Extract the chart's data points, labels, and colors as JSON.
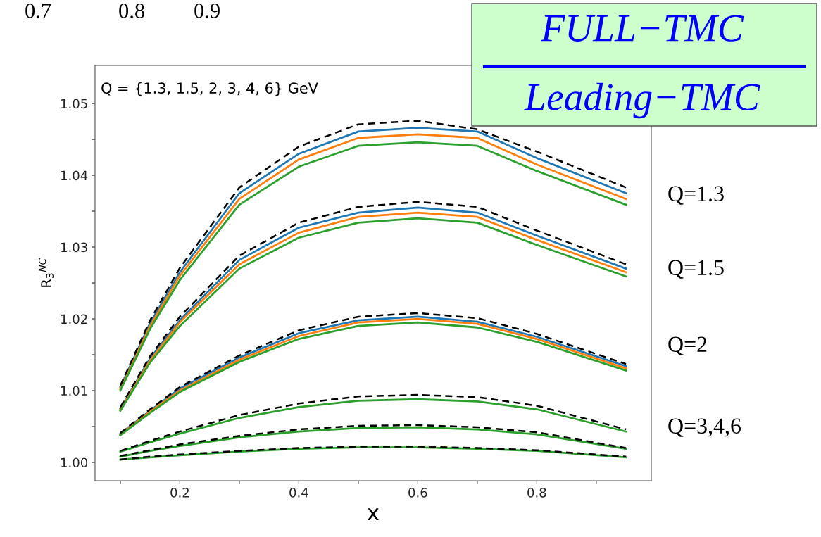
{
  "chart_data": {
    "type": "line",
    "xlabel": "x",
    "ylabel": "R$_{3}$$^{NC}$",
    "x": [
      0.1,
      0.15,
      0.2,
      0.3,
      0.4,
      0.5,
      0.6,
      0.7,
      0.8,
      0.95
    ],
    "series": [
      {
        "color": "#1f77b4",
        "line_style": "solid",
        "values": [
          1.0105,
          1.0194,
          1.0265,
          1.0375,
          1.043,
          1.0461,
          1.0466,
          1.0461,
          1.0424,
          1.0375
        ]
      },
      {
        "color": "#ff7f0e",
        "line_style": "solid",
        "values": [
          1.0102,
          1.019,
          1.026,
          1.0367,
          1.0422,
          1.0452,
          1.0457,
          1.0452,
          1.0415,
          1.0367
        ]
      },
      {
        "color": "#2ca02c",
        "line_style": "solid",
        "values": [
          1.01,
          1.0186,
          1.0254,
          1.0359,
          1.0412,
          1.0441,
          1.0446,
          1.0441,
          1.0406,
          1.0359
        ]
      },
      {
        "color": "#000000",
        "line_style": "dashed",
        "values": [
          1.0107,
          1.0198,
          1.0271,
          1.0383,
          1.044,
          1.0471,
          1.0476,
          1.0464,
          1.0433,
          1.0383
        ]
      },
      {
        "color": "#1f77b4",
        "line_style": "solid",
        "values": [
          1.0075,
          1.0145,
          1.0198,
          1.0282,
          1.0327,
          1.0348,
          1.0355,
          1.0348,
          1.0316,
          1.027
        ]
      },
      {
        "color": "#ff7f0e",
        "line_style": "solid",
        "values": [
          1.0074,
          1.0142,
          1.0195,
          1.0276,
          1.032,
          1.0342,
          1.0348,
          1.0342,
          1.031,
          1.0265
        ]
      },
      {
        "color": "#2ca02c",
        "line_style": "solid",
        "values": [
          1.0072,
          1.0139,
          1.019,
          1.027,
          1.0313,
          1.0334,
          1.034,
          1.0334,
          1.0303,
          1.0259
        ]
      },
      {
        "color": "#000000",
        "line_style": "dashed",
        "values": [
          1.0077,
          1.0148,
          1.0203,
          1.0288,
          1.0334,
          1.0356,
          1.0363,
          1.0356,
          1.0323,
          1.0276
        ]
      },
      {
        "color": "#1f77b4",
        "line_style": "solid",
        "values": [
          1.004,
          1.0072,
          1.0103,
          1.0146,
          1.018,
          1.0198,
          1.0203,
          1.0196,
          1.0175,
          1.0134
        ]
      },
      {
        "color": "#ff7f0e",
        "line_style": "solid",
        "values": [
          1.0039,
          1.0071,
          1.01,
          1.0143,
          1.0176,
          1.0195,
          1.02,
          1.0193,
          1.0172,
          1.0131
        ]
      },
      {
        "color": "#2ca02c",
        "line_style": "solid",
        "values": [
          1.0038,
          1.0069,
          1.0098,
          1.014,
          1.0172,
          1.019,
          1.0195,
          1.0188,
          1.0168,
          1.0128
        ]
      },
      {
        "color": "#000000",
        "line_style": "dashed",
        "values": [
          1.0041,
          1.0074,
          1.0105,
          1.0149,
          1.0184,
          1.0203,
          1.0208,
          1.0201,
          1.0179,
          1.0137
        ]
      },
      {
        "color": "#2ca02c",
        "line_style": "solid",
        "values": [
          1.0015,
          1.0028,
          1.004,
          1.0062,
          1.0077,
          1.0086,
          1.0088,
          1.0085,
          1.0074,
          1.0043
        ]
      },
      {
        "color": "#000000",
        "line_style": "dashed",
        "values": [
          1.0016,
          1.003,
          1.0043,
          1.0066,
          1.0082,
          1.0092,
          1.0094,
          1.0091,
          1.0079,
          1.0046
        ]
      },
      {
        "color": "#2ca02c",
        "line_style": "solid",
        "values": [
          1.0008,
          1.0016,
          1.0023,
          1.0035,
          1.0043,
          1.0048,
          1.0049,
          1.0046,
          1.0039,
          1.0019
        ]
      },
      {
        "color": "#000000",
        "line_style": "dashed",
        "values": [
          1.0009,
          1.0017,
          1.0025,
          1.0037,
          1.0046,
          1.0051,
          1.0052,
          1.0049,
          1.0042,
          1.002
        ]
      },
      {
        "color": "#2ca02c",
        "line_style": "solid",
        "values": [
          1.0004,
          1.0007,
          1.001,
          1.0015,
          1.0019,
          1.0021,
          1.0021,
          1.0019,
          1.0016,
          1.0007
        ]
      },
      {
        "color": "#000000",
        "line_style": "dashed",
        "values": [
          1.0004,
          1.0008,
          1.0011,
          1.0016,
          1.002,
          1.0022,
          1.0022,
          1.002,
          1.0017,
          1.0008
        ]
      }
    ],
    "xlim": [
      0.0575,
      0.9925
    ],
    "xticks": [
      {
        "value": 0.1,
        "label": null
      },
      0.2,
      {
        "value": 0.3,
        "label": null
      },
      0.4,
      {
        "value": 0.5,
        "label": null
      },
      0.6,
      {
        "value": 0.7,
        "label": null
      },
      0.8,
      {
        "value": 0.9,
        "label": null
      }
    ],
    "ylim": [
      0.99745,
      1.0553
    ],
    "yticks": [
      {
        "value": 1.0,
        "label": "1.00"
      },
      {
        "value": 1.005,
        "label": null
      },
      1.01,
      {
        "value": 1.015,
        "label": null
      },
      1.02,
      {
        "value": 1.025,
        "label": null
      },
      1.03,
      {
        "value": 1.035,
        "label": null
      },
      1.04,
      {
        "value": 1.045,
        "label": null
      },
      1.05
    ],
    "grid": false,
    "marker": "none",
    "annotations": [
      "0.7",
      "0.8",
      "0.9",
      "Q = {1.3, 1.5, 2, 3, 4, 6} GeV",
      "FULL−TMC",
      "Leading−TMC",
      "Q=1.3",
      "Q=1.5",
      "Q=2",
      "Q=3,4,6"
    ]
  }
}
